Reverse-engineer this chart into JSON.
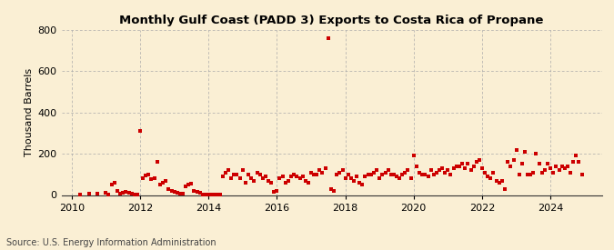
{
  "title": "Monthly Gulf Coast (PADD 3) Exports to Costa Rica of Propane",
  "ylabel": "Thousand Barrels",
  "source": "Source: U.S. Energy Information Administration",
  "background_color": "#faefd4",
  "xlim": [
    2009.7,
    2025.5
  ],
  "ylim": [
    0,
    800
  ],
  "yticks": [
    0,
    200,
    400,
    600,
    800
  ],
  "xticks": [
    2010,
    2012,
    2014,
    2016,
    2018,
    2020,
    2022,
    2024
  ],
  "marker_color": "#cc0000",
  "marker_size": 5,
  "grid_color": "#aaaaaa",
  "data": [
    [
      2010.25,
      2
    ],
    [
      2010.5,
      5
    ],
    [
      2010.75,
      8
    ],
    [
      2011.0,
      12
    ],
    [
      2011.08,
      3
    ],
    [
      2011.17,
      50
    ],
    [
      2011.25,
      60
    ],
    [
      2011.33,
      20
    ],
    [
      2011.42,
      5
    ],
    [
      2011.5,
      10
    ],
    [
      2011.58,
      15
    ],
    [
      2011.67,
      10
    ],
    [
      2011.75,
      5
    ],
    [
      2011.83,
      2
    ],
    [
      2011.92,
      3
    ],
    [
      2012.0,
      310
    ],
    [
      2012.08,
      80
    ],
    [
      2012.17,
      95
    ],
    [
      2012.25,
      100
    ],
    [
      2012.33,
      75
    ],
    [
      2012.42,
      80
    ],
    [
      2012.5,
      160
    ],
    [
      2012.58,
      50
    ],
    [
      2012.67,
      60
    ],
    [
      2012.75,
      70
    ],
    [
      2012.83,
      30
    ],
    [
      2012.92,
      20
    ],
    [
      2013.0,
      15
    ],
    [
      2013.08,
      10
    ],
    [
      2013.17,
      5
    ],
    [
      2013.25,
      5
    ],
    [
      2013.33,
      40
    ],
    [
      2013.42,
      50
    ],
    [
      2013.5,
      55
    ],
    [
      2013.58,
      20
    ],
    [
      2013.67,
      15
    ],
    [
      2013.75,
      10
    ],
    [
      2013.83,
      2
    ],
    [
      2013.92,
      1
    ],
    [
      2014.0,
      3
    ],
    [
      2014.08,
      2
    ],
    [
      2014.17,
      2
    ],
    [
      2014.25,
      2
    ],
    [
      2014.33,
      3
    ],
    [
      2014.42,
      90
    ],
    [
      2014.5,
      110
    ],
    [
      2014.58,
      120
    ],
    [
      2014.67,
      80
    ],
    [
      2014.75,
      100
    ],
    [
      2014.83,
      100
    ],
    [
      2014.92,
      80
    ],
    [
      2015.0,
      120
    ],
    [
      2015.08,
      60
    ],
    [
      2015.17,
      100
    ],
    [
      2015.25,
      80
    ],
    [
      2015.33,
      70
    ],
    [
      2015.42,
      110
    ],
    [
      2015.5,
      100
    ],
    [
      2015.58,
      80
    ],
    [
      2015.67,
      90
    ],
    [
      2015.75,
      70
    ],
    [
      2015.83,
      60
    ],
    [
      2015.92,
      15
    ],
    [
      2016.0,
      20
    ],
    [
      2016.08,
      80
    ],
    [
      2016.17,
      90
    ],
    [
      2016.25,
      60
    ],
    [
      2016.33,
      70
    ],
    [
      2016.42,
      90
    ],
    [
      2016.5,
      100
    ],
    [
      2016.58,
      90
    ],
    [
      2016.67,
      80
    ],
    [
      2016.75,
      90
    ],
    [
      2016.83,
      70
    ],
    [
      2016.92,
      60
    ],
    [
      2017.0,
      110
    ],
    [
      2017.08,
      100
    ],
    [
      2017.17,
      100
    ],
    [
      2017.25,
      120
    ],
    [
      2017.33,
      110
    ],
    [
      2017.42,
      130
    ],
    [
      2017.5,
      760
    ],
    [
      2017.58,
      30
    ],
    [
      2017.67,
      20
    ],
    [
      2017.75,
      100
    ],
    [
      2017.83,
      110
    ],
    [
      2017.92,
      120
    ],
    [
      2018.0,
      80
    ],
    [
      2018.08,
      100
    ],
    [
      2018.17,
      80
    ],
    [
      2018.25,
      70
    ],
    [
      2018.33,
      90
    ],
    [
      2018.42,
      60
    ],
    [
      2018.5,
      50
    ],
    [
      2018.58,
      90
    ],
    [
      2018.67,
      100
    ],
    [
      2018.75,
      100
    ],
    [
      2018.83,
      110
    ],
    [
      2018.92,
      120
    ],
    [
      2019.0,
      80
    ],
    [
      2019.08,
      100
    ],
    [
      2019.17,
      110
    ],
    [
      2019.25,
      120
    ],
    [
      2019.33,
      100
    ],
    [
      2019.42,
      100
    ],
    [
      2019.5,
      90
    ],
    [
      2019.58,
      80
    ],
    [
      2019.67,
      100
    ],
    [
      2019.75,
      110
    ],
    [
      2019.83,
      120
    ],
    [
      2019.92,
      80
    ],
    [
      2020.0,
      190
    ],
    [
      2020.08,
      140
    ],
    [
      2020.17,
      110
    ],
    [
      2020.25,
      100
    ],
    [
      2020.33,
      100
    ],
    [
      2020.42,
      90
    ],
    [
      2020.5,
      120
    ],
    [
      2020.58,
      100
    ],
    [
      2020.67,
      110
    ],
    [
      2020.75,
      120
    ],
    [
      2020.83,
      130
    ],
    [
      2020.92,
      110
    ],
    [
      2021.0,
      120
    ],
    [
      2021.08,
      100
    ],
    [
      2021.17,
      130
    ],
    [
      2021.25,
      140
    ],
    [
      2021.33,
      140
    ],
    [
      2021.42,
      150
    ],
    [
      2021.5,
      130
    ],
    [
      2021.58,
      150
    ],
    [
      2021.67,
      120
    ],
    [
      2021.75,
      140
    ],
    [
      2021.83,
      160
    ],
    [
      2021.92,
      170
    ],
    [
      2022.0,
      130
    ],
    [
      2022.08,
      110
    ],
    [
      2022.17,
      90
    ],
    [
      2022.25,
      80
    ],
    [
      2022.33,
      110
    ],
    [
      2022.42,
      70
    ],
    [
      2022.5,
      60
    ],
    [
      2022.58,
      70
    ],
    [
      2022.67,
      30
    ],
    [
      2022.75,
      160
    ],
    [
      2022.83,
      140
    ],
    [
      2022.92,
      170
    ],
    [
      2023.0,
      220
    ],
    [
      2023.08,
      100
    ],
    [
      2023.17,
      150
    ],
    [
      2023.25,
      210
    ],
    [
      2023.33,
      100
    ],
    [
      2023.42,
      100
    ],
    [
      2023.5,
      110
    ],
    [
      2023.58,
      200
    ],
    [
      2023.67,
      150
    ],
    [
      2023.75,
      110
    ],
    [
      2023.83,
      120
    ],
    [
      2023.92,
      150
    ],
    [
      2024.0,
      130
    ],
    [
      2024.08,
      110
    ],
    [
      2024.17,
      140
    ],
    [
      2024.25,
      120
    ],
    [
      2024.33,
      140
    ],
    [
      2024.42,
      130
    ],
    [
      2024.5,
      140
    ],
    [
      2024.58,
      110
    ],
    [
      2024.67,
      160
    ],
    [
      2024.75,
      190
    ],
    [
      2024.83,
      160
    ],
    [
      2024.92,
      100
    ]
  ]
}
